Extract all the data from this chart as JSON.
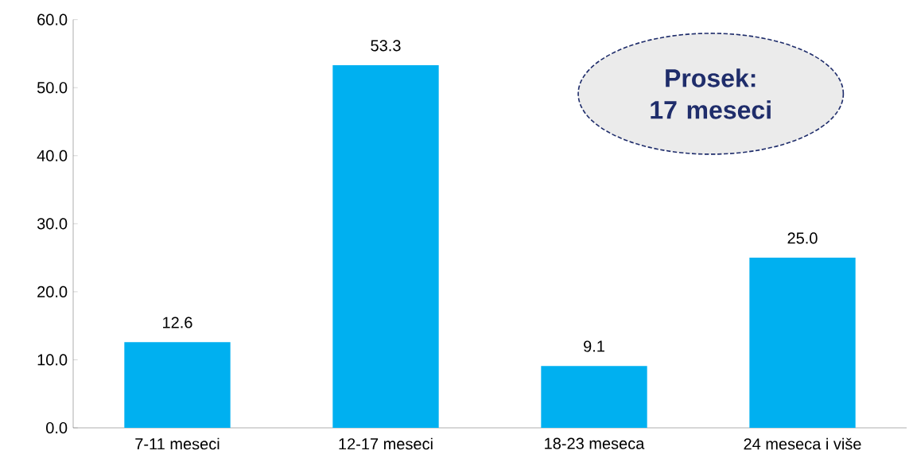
{
  "chart_data": {
    "type": "bar",
    "categories": [
      "7-11 meseci",
      "12-17 meseci",
      "18-23 meseca",
      "24 meseca i više"
    ],
    "values": [
      12.6,
      53.3,
      9.1,
      25.0
    ],
    "color": "#00b0f0",
    "ylim": [
      0,
      60
    ],
    "yticks": [
      {
        "value": 0,
        "label": "0.0"
      },
      {
        "value": 10,
        "label": "10.0"
      },
      {
        "value": 20,
        "label": "20.0"
      },
      {
        "value": 30,
        "label": "30.0"
      },
      {
        "value": 40,
        "label": "40.0"
      },
      {
        "value": 50,
        "label": "50.0"
      },
      {
        "value": 60,
        "label": "60.0"
      }
    ],
    "value_labels": [
      "12.6",
      "53.3",
      "9.1",
      "25.0"
    ],
    "grid": false,
    "annotations": [
      "Prosek: 17 meseci"
    ]
  }
}
